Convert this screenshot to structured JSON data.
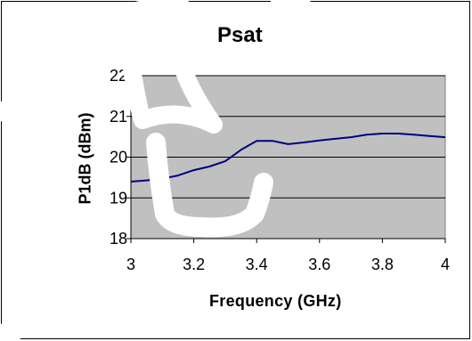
{
  "chart_data": {
    "type": "line",
    "title": "Psat",
    "xlabel": "Frequency (GHz)",
    "ylabel": "P1dB (dBm)",
    "xlim": [
      3,
      4
    ],
    "ylim": [
      18,
      22
    ],
    "x_ticks": [
      "3",
      "3.2",
      "3.4",
      "3.6",
      "3.8",
      "4"
    ],
    "y_ticks": [
      "18",
      "19",
      "20",
      "21",
      "22"
    ],
    "grid": "horizontal",
    "legend": "none",
    "plot_background": "#c0c0c0",
    "series": [
      {
        "color": "#000080",
        "x": [
          3.0,
          3.05,
          3.1,
          3.15,
          3.2,
          3.25,
          3.3,
          3.35,
          3.4,
          3.45,
          3.5,
          3.55,
          3.6,
          3.65,
          3.7,
          3.75,
          3.8,
          3.85,
          3.9,
          3.95,
          4.0
        ],
        "y": [
          19.4,
          19.43,
          19.47,
          19.55,
          19.68,
          19.77,
          19.9,
          20.18,
          20.4,
          20.4,
          20.32,
          20.36,
          20.41,
          20.45,
          20.49,
          20.55,
          20.58,
          20.58,
          20.55,
          20.52,
          20.49
        ]
      }
    ]
  }
}
